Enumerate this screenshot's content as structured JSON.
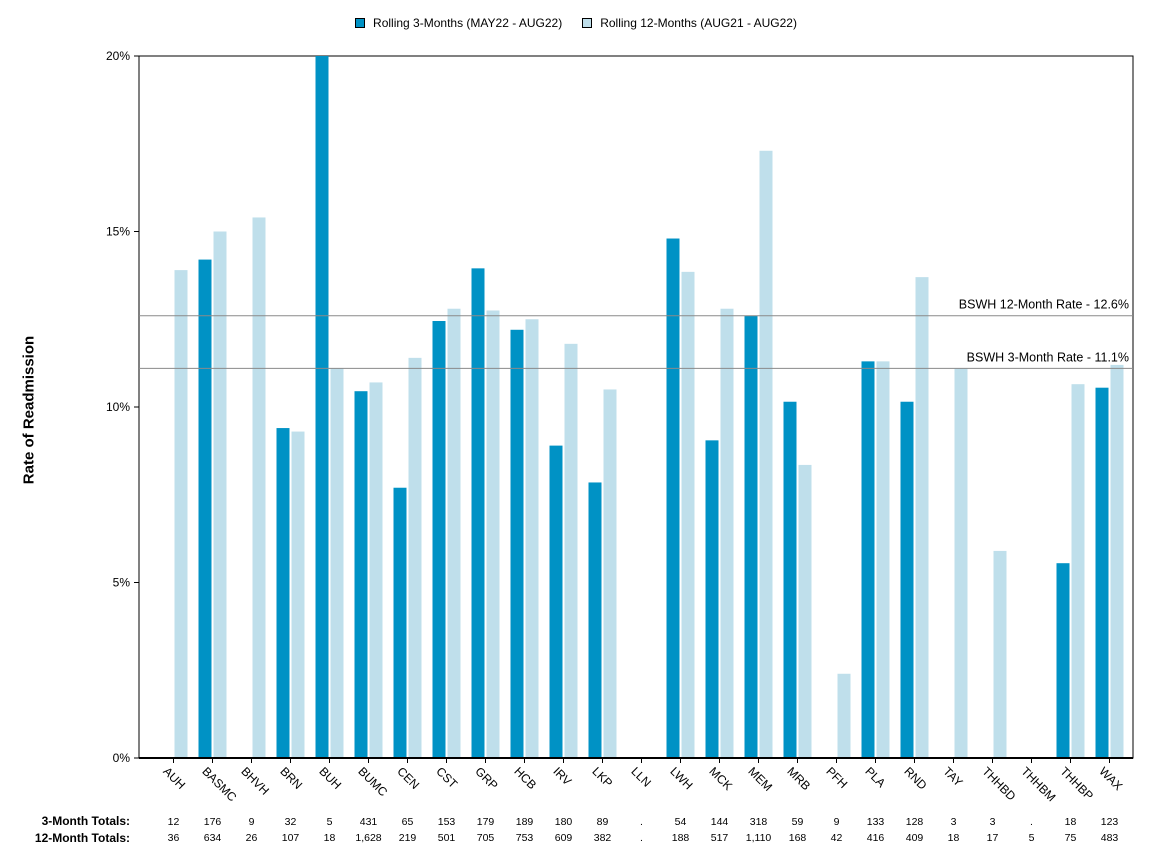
{
  "chart_data": {
    "type": "bar",
    "categories": [
      "AUH",
      "BASMC",
      "BHVH",
      "BRN",
      "BUH",
      "BUMC",
      "CEN",
      "CST",
      "GRP",
      "HCB",
      "IRV",
      "LKP",
      "LLN",
      "LWH",
      "MCK",
      "MEM",
      "MRB",
      "PFH",
      "PLA",
      "RND",
      "TAY",
      "THHBD",
      "THHBM",
      "THHBP",
      "WAX"
    ],
    "series": [
      {
        "name": "Rolling 3-Months (MAY22 - AUG22)",
        "color": "#0092c5",
        "values": [
          null,
          14.2,
          null,
          9.4,
          20.0,
          10.45,
          7.7,
          12.45,
          13.95,
          12.2,
          8.9,
          7.85,
          null,
          14.8,
          9.05,
          12.6,
          10.15,
          null,
          11.3,
          10.15,
          null,
          null,
          null,
          5.55,
          10.55
        ]
      },
      {
        "name": "Rolling 12-Months (AUG21 - AUG22)",
        "color": "#bfdfeb",
        "values": [
          13.9,
          15.0,
          15.4,
          9.3,
          11.1,
          10.7,
          11.4,
          12.8,
          12.75,
          12.5,
          11.8,
          10.5,
          null,
          13.85,
          12.8,
          17.3,
          8.35,
          2.4,
          11.3,
          13.7,
          11.1,
          5.9,
          null,
          10.65,
          11.2
        ]
      }
    ],
    "ylabel": "Rate of Readmission",
    "ylim": [
      0,
      20
    ],
    "yticks": [
      {
        "value": 0,
        "label": "0%"
      },
      {
        "value": 5,
        "label": "5%"
      },
      {
        "value": 10,
        "label": "10%"
      },
      {
        "value": 15,
        "label": "15%"
      },
      {
        "value": 20,
        "label": "20%"
      }
    ],
    "reference_lines": [
      {
        "value": 12.6,
        "label": "BSWH 12-Month Rate - 12.6%"
      },
      {
        "value": 11.1,
        "label": "BSWH  3-Month Rate - 11.1%"
      }
    ],
    "legend_position": "top-center",
    "grid": false,
    "totals": {
      "three_month": {
        "label": "3-Month Totals:",
        "values": [
          "12",
          "176",
          "9",
          "32",
          "5",
          "431",
          "65",
          "153",
          "179",
          "189",
          "180",
          "89",
          ".",
          "54",
          "144",
          "318",
          "59",
          "9",
          "133",
          "128",
          "3",
          "3",
          ".",
          "18",
          "123"
        ]
      },
      "twelve_month": {
        "label": "12-Month Totals:",
        "values": [
          "36",
          "634",
          "26",
          "107",
          "18",
          "1,628",
          "219",
          "501",
          "705",
          "753",
          "609",
          "382",
          ".",
          "188",
          "517",
          "1,110",
          "168",
          "42",
          "416",
          "409",
          "18",
          "17",
          "5",
          "75",
          "483"
        ]
      }
    }
  }
}
